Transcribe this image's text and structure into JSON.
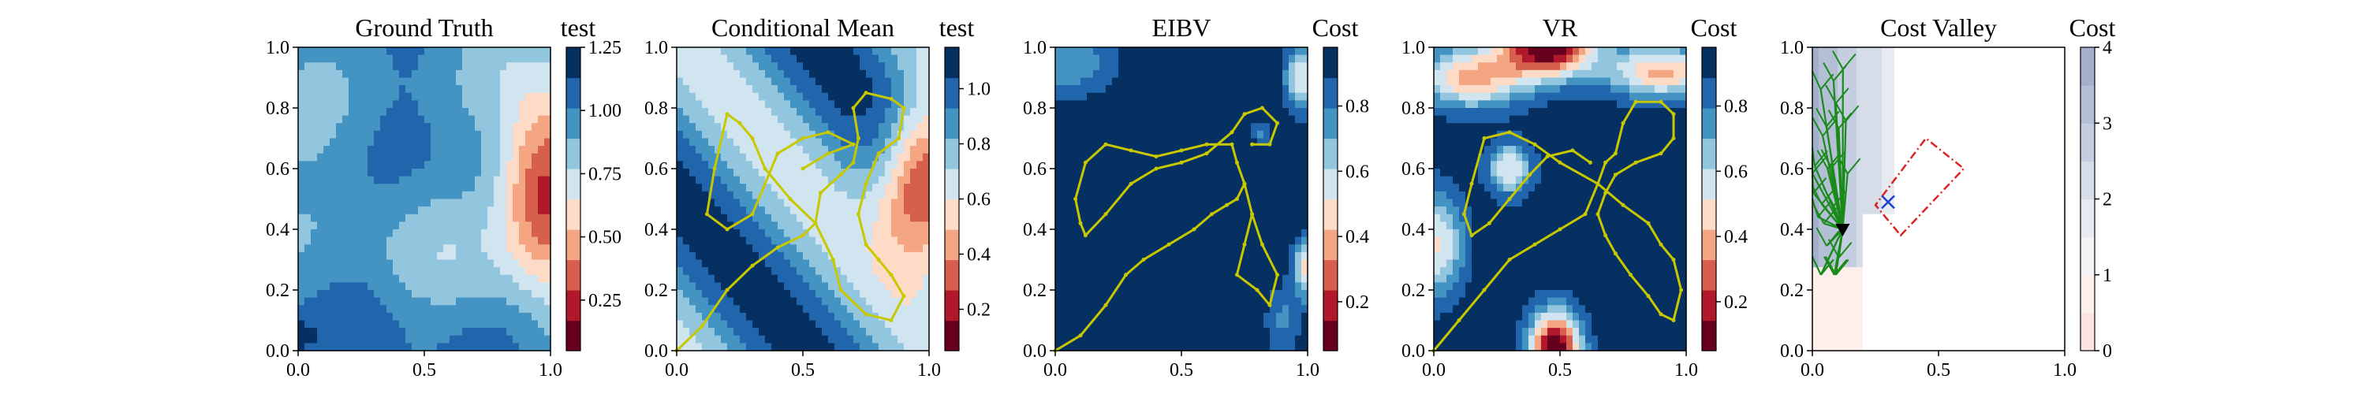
{
  "chart_data": [
    {
      "type": "heatmap",
      "title": "Ground Truth",
      "colorbar_label": "test",
      "xlim": [
        0,
        1
      ],
      "ylim": [
        0,
        1
      ],
      "xticks": [
        "0.0",
        "0.5",
        "1.0"
      ],
      "yticks": [
        "0.0",
        "0.2",
        "0.4",
        "0.6",
        "0.8",
        "1.0"
      ],
      "colorbar_ticks": [
        "0.25",
        "0.50",
        "0.75",
        "1.00",
        "1.25"
      ],
      "colorbar_range": [
        0.05,
        1.25
      ],
      "colormap": "RdBu",
      "field": "ground_truth"
    },
    {
      "type": "heatmap",
      "title": "Conditional Mean",
      "colorbar_label": "test",
      "xlim": [
        0,
        1
      ],
      "ylim": [
        0,
        1
      ],
      "xticks": [
        "0.0",
        "0.5",
        "1.0"
      ],
      "yticks": [
        "0.0",
        "0.2",
        "0.4",
        "0.6",
        "0.8",
        "1.0"
      ],
      "colorbar_ticks": [
        "0.2",
        "0.4",
        "0.6",
        "0.8",
        "1.0"
      ],
      "colorbar_range": [
        0.05,
        1.15
      ],
      "colormap": "RdBu",
      "field": "conditional_mean",
      "path_color": "#c8c800",
      "path": [
        [
          0.0,
          0.0
        ],
        [
          0.1,
          0.08
        ],
        [
          0.2,
          0.2
        ],
        [
          0.3,
          0.28
        ],
        [
          0.4,
          0.34
        ],
        [
          0.5,
          0.38
        ],
        [
          0.55,
          0.42
        ],
        [
          0.57,
          0.52
        ],
        [
          0.65,
          0.58
        ],
        [
          0.7,
          0.62
        ],
        [
          0.72,
          0.7
        ],
        [
          0.7,
          0.8
        ],
        [
          0.75,
          0.85
        ],
        [
          0.85,
          0.83
        ],
        [
          0.9,
          0.8
        ],
        [
          0.88,
          0.7
        ],
        [
          0.8,
          0.65
        ],
        [
          0.75,
          0.55
        ],
        [
          0.72,
          0.45
        ],
        [
          0.75,
          0.35
        ],
        [
          0.8,
          0.3
        ],
        [
          0.85,
          0.25
        ],
        [
          0.9,
          0.18
        ],
        [
          0.85,
          0.1
        ],
        [
          0.75,
          0.12
        ],
        [
          0.65,
          0.2
        ],
        [
          0.62,
          0.3
        ],
        [
          0.55,
          0.42
        ],
        [
          0.45,
          0.5
        ],
        [
          0.35,
          0.6
        ],
        [
          0.3,
          0.7
        ],
        [
          0.25,
          0.75
        ],
        [
          0.2,
          0.78
        ],
        [
          0.15,
          0.6
        ],
        [
          0.12,
          0.45
        ],
        [
          0.2,
          0.4
        ],
        [
          0.3,
          0.45
        ],
        [
          0.4,
          0.65
        ],
        [
          0.5,
          0.7
        ],
        [
          0.6,
          0.72
        ],
        [
          0.7,
          0.68
        ],
        [
          0.6,
          0.65
        ],
        [
          0.5,
          0.6
        ]
      ]
    },
    {
      "type": "heatmap",
      "title": "EIBV",
      "colorbar_label": "Cost",
      "xlim": [
        0,
        1
      ],
      "ylim": [
        0,
        1
      ],
      "xticks": [
        "0.0",
        "0.5",
        "1.0"
      ],
      "yticks": [
        "0.0",
        "0.2",
        "0.4",
        "0.6",
        "0.8",
        "1.0"
      ],
      "colorbar_ticks": [
        "0.2",
        "0.4",
        "0.6",
        "0.8"
      ],
      "colorbar_range": [
        0.05,
        0.98
      ],
      "colormap": "RdBu",
      "field": "eibv",
      "path_color": "#c8c800",
      "path": [
        [
          0.0,
          0.0
        ],
        [
          0.1,
          0.05
        ],
        [
          0.2,
          0.15
        ],
        [
          0.28,
          0.25
        ],
        [
          0.35,
          0.3
        ],
        [
          0.45,
          0.35
        ],
        [
          0.55,
          0.4
        ],
        [
          0.62,
          0.45
        ],
        [
          0.68,
          0.48
        ],
        [
          0.72,
          0.5
        ],
        [
          0.75,
          0.55
        ],
        [
          0.78,
          0.45
        ],
        [
          0.75,
          0.35
        ],
        [
          0.72,
          0.25
        ],
        [
          0.8,
          0.2
        ],
        [
          0.85,
          0.15
        ],
        [
          0.88,
          0.25
        ],
        [
          0.82,
          0.35
        ],
        [
          0.78,
          0.45
        ],
        [
          0.75,
          0.55
        ],
        [
          0.72,
          0.62
        ],
        [
          0.7,
          0.68
        ],
        [
          0.6,
          0.68
        ],
        [
          0.5,
          0.66
        ],
        [
          0.4,
          0.64
        ],
        [
          0.3,
          0.66
        ],
        [
          0.2,
          0.68
        ],
        [
          0.12,
          0.62
        ],
        [
          0.08,
          0.5
        ],
        [
          0.1,
          0.42
        ],
        [
          0.12,
          0.38
        ],
        [
          0.2,
          0.45
        ],
        [
          0.3,
          0.55
        ],
        [
          0.4,
          0.6
        ],
        [
          0.5,
          0.62
        ],
        [
          0.6,
          0.65
        ],
        [
          0.7,
          0.72
        ],
        [
          0.75,
          0.78
        ],
        [
          0.82,
          0.8
        ],
        [
          0.88,
          0.75
        ],
        [
          0.85,
          0.68
        ],
        [
          0.78,
          0.68
        ]
      ]
    },
    {
      "type": "heatmap",
      "title": "VR",
      "colorbar_label": "Cost",
      "xlim": [
        0,
        1
      ],
      "ylim": [
        0,
        1
      ],
      "xticks": [
        "0.0",
        "0.5",
        "1.0"
      ],
      "yticks": [
        "0.0",
        "0.2",
        "0.4",
        "0.6",
        "0.8",
        "1.0"
      ],
      "colorbar_ticks": [
        "0.2",
        "0.4",
        "0.6",
        "0.8"
      ],
      "colorbar_range": [
        0.05,
        0.98
      ],
      "colormap": "RdBu",
      "field": "vr",
      "path_color": "#c8c800",
      "path": [
        [
          0.0,
          0.0
        ],
        [
          0.1,
          0.1
        ],
        [
          0.2,
          0.2
        ],
        [
          0.3,
          0.3
        ],
        [
          0.4,
          0.35
        ],
        [
          0.5,
          0.4
        ],
        [
          0.6,
          0.45
        ],
        [
          0.65,
          0.55
        ],
        [
          0.68,
          0.62
        ],
        [
          0.72,
          0.65
        ],
        [
          0.75,
          0.75
        ],
        [
          0.8,
          0.82
        ],
        [
          0.9,
          0.82
        ],
        [
          0.95,
          0.78
        ],
        [
          0.95,
          0.7
        ],
        [
          0.9,
          0.65
        ],
        [
          0.8,
          0.62
        ],
        [
          0.72,
          0.58
        ],
        [
          0.68,
          0.52
        ],
        [
          0.65,
          0.45
        ],
        [
          0.68,
          0.38
        ],
        [
          0.72,
          0.32
        ],
        [
          0.78,
          0.25
        ],
        [
          0.85,
          0.18
        ],
        [
          0.9,
          0.12
        ],
        [
          0.95,
          0.1
        ],
        [
          0.98,
          0.2
        ],
        [
          0.95,
          0.3
        ],
        [
          0.9,
          0.35
        ],
        [
          0.85,
          0.42
        ],
        [
          0.75,
          0.48
        ],
        [
          0.65,
          0.55
        ],
        [
          0.5,
          0.62
        ],
        [
          0.4,
          0.68
        ],
        [
          0.3,
          0.72
        ],
        [
          0.2,
          0.7
        ],
        [
          0.15,
          0.55
        ],
        [
          0.12,
          0.45
        ],
        [
          0.15,
          0.38
        ],
        [
          0.22,
          0.42
        ],
        [
          0.3,
          0.5
        ],
        [
          0.38,
          0.58
        ],
        [
          0.45,
          0.64
        ],
        [
          0.55,
          0.66
        ],
        [
          0.62,
          0.62
        ]
      ]
    },
    {
      "type": "heatmap",
      "title": "Cost Valley",
      "colorbar_label": "Cost",
      "xlim": [
        0,
        1
      ],
      "ylim": [
        0,
        1
      ],
      "xticks": [
        "0.0",
        "0.5",
        "1.0"
      ],
      "yticks": [
        "0.0",
        "0.2",
        "0.4",
        "0.6",
        "0.8",
        "1.0"
      ],
      "colorbar_ticks": [
        "0",
        "1",
        "2",
        "3",
        "4"
      ],
      "colorbar_range": [
        0,
        4
      ],
      "colormap": "RdBu_light",
      "field": "cost_valley",
      "tree_color": "#1a8a1a",
      "start_point": [
        0.12,
        0.4
      ],
      "target_point": [
        0.3,
        0.49
      ],
      "polygon_color": "#dd2222",
      "polygon": [
        [
          0.35,
          0.38
        ],
        [
          0.6,
          0.6
        ],
        [
          0.45,
          0.7
        ],
        [
          0.25,
          0.48
        ]
      ]
    }
  ]
}
